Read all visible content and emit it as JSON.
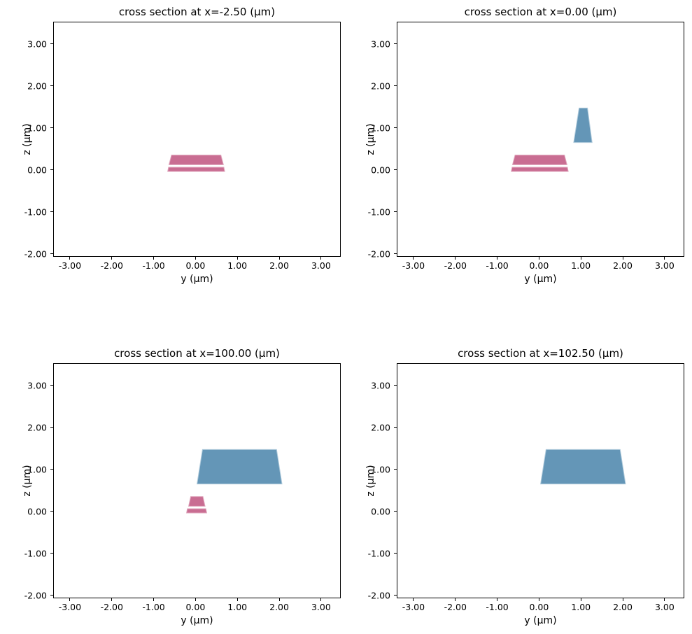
{
  "figure": {
    "background": "#ffffff",
    "text_color": "#000000",
    "layer_colors": {
      "lower_layer_fill": "#c96d92",
      "lower_layer_edge": "#dfa6bc",
      "upper_layer_fill": "#6496b7",
      "upper_layer_edge": "#b0cbdc"
    }
  },
  "chart_data": [
    {
      "type": "cross-section-polygons",
      "title": "cross section at x=-2.50 (μm)",
      "xlabel": "y (μm)",
      "ylabel": "z (μm)",
      "xlim": [
        -3.4,
        3.47
      ],
      "ylim": [
        -2.07,
        3.53
      ],
      "grid": false,
      "xticks": [
        -3,
        -2,
        -1,
        0,
        1,
        2,
        3
      ],
      "xtick_labels": [
        "-3.00",
        "-2.00",
        "-1.00",
        "0.00",
        "1.00",
        "2.00",
        "3.00"
      ],
      "yticks": [
        3,
        2,
        1,
        0,
        -1,
        -2
      ],
      "ytick_labels": [
        "3.00",
        "2.00",
        "1.00",
        "0.00",
        "-1.00",
        "-2.00"
      ],
      "shapes": [
        {
          "name": "slab-layer",
          "color": "#c96d92",
          "edge": "#dfa6bc",
          "points": [
            [
              -0.68,
              -0.02
            ],
            [
              0.68,
              -0.02
            ],
            [
              0.66,
              0.08
            ],
            [
              -0.66,
              0.08
            ]
          ]
        },
        {
          "name": "core-layer",
          "color": "#c96d92",
          "edge": "#dfa6bc",
          "points": [
            [
              -0.65,
              0.14
            ],
            [
              0.65,
              0.14
            ],
            [
              0.59,
              0.37
            ],
            [
              -0.59,
              0.37
            ]
          ]
        }
      ]
    },
    {
      "type": "cross-section-polygons",
      "title": "cross section at x=0.00 (μm)",
      "xlabel": "y (μm)",
      "ylabel": "z (μm)",
      "xlim": [
        -3.4,
        3.47
      ],
      "ylim": [
        -2.07,
        3.53
      ],
      "grid": false,
      "xticks": [
        -3,
        -2,
        -1,
        0,
        1,
        2,
        3
      ],
      "xtick_labels": [
        "-3.00",
        "-2.00",
        "-1.00",
        "0.00",
        "1.00",
        "2.00",
        "3.00"
      ],
      "yticks": [
        3,
        2,
        1,
        0,
        -1,
        -2
      ],
      "ytick_labels": [
        "3.00",
        "2.00",
        "1.00",
        "0.00",
        "-1.00",
        "-2.00"
      ],
      "shapes": [
        {
          "name": "slab-layer",
          "color": "#c96d92",
          "edge": "#dfa6bc",
          "points": [
            [
              -0.68,
              -0.02
            ],
            [
              0.68,
              -0.02
            ],
            [
              0.66,
              0.08
            ],
            [
              -0.66,
              0.08
            ]
          ]
        },
        {
          "name": "core-layer",
          "color": "#c96d92",
          "edge": "#dfa6bc",
          "points": [
            [
              -0.65,
              0.14
            ],
            [
              0.65,
              0.14
            ],
            [
              0.59,
              0.37
            ],
            [
              -0.59,
              0.37
            ]
          ]
        },
        {
          "name": "upper-waveguide",
          "color": "#6496b7",
          "edge": "#b0cbdc",
          "points": [
            [
              0.81,
              0.67
            ],
            [
              1.25,
              0.67
            ],
            [
              1.14,
              1.49
            ],
            [
              0.94,
              1.49
            ]
          ]
        }
      ]
    },
    {
      "type": "cross-section-polygons",
      "title": "cross section at x=100.00 (μm)",
      "xlabel": "y (μm)",
      "ylabel": "z (μm)",
      "xlim": [
        -3.4,
        3.47
      ],
      "ylim": [
        -2.07,
        3.53
      ],
      "grid": false,
      "xticks": [
        -3,
        -2,
        -1,
        0,
        1,
        2,
        3
      ],
      "xtick_labels": [
        "-3.00",
        "-2.00",
        "-1.00",
        "0.00",
        "1.00",
        "2.00",
        "3.00"
      ],
      "yticks": [
        3,
        2,
        1,
        0,
        -1,
        -2
      ],
      "ytick_labels": [
        "3.00",
        "2.00",
        "1.00",
        "0.00",
        "-1.00",
        "-2.00"
      ],
      "shapes": [
        {
          "name": "upper-waveguide",
          "color": "#6496b7",
          "edge": "#b0cbdc",
          "points": [
            [
              0.02,
              0.67
            ],
            [
              2.05,
              0.67
            ],
            [
              1.92,
              1.49
            ],
            [
              0.15,
              1.49
            ]
          ]
        },
        {
          "name": "slab-layer",
          "color": "#c96d92",
          "edge": "#dfa6bc",
          "points": [
            [
              -0.23,
              -0.02
            ],
            [
              0.25,
              -0.02
            ],
            [
              0.23,
              0.08
            ],
            [
              -0.21,
              0.08
            ]
          ]
        },
        {
          "name": "core-layer",
          "color": "#c96d92",
          "edge": "#dfa6bc",
          "points": [
            [
              -0.18,
              0.14
            ],
            [
              0.21,
              0.14
            ],
            [
              0.16,
              0.37
            ],
            [
              -0.13,
              0.37
            ]
          ]
        }
      ]
    },
    {
      "type": "cross-section-polygons",
      "title": "cross section at x=102.50 (μm)",
      "xlabel": "y (μm)",
      "ylabel": "z (μm)",
      "xlim": [
        -3.4,
        3.47
      ],
      "ylim": [
        -2.07,
        3.53
      ],
      "grid": false,
      "xticks": [
        -3,
        -2,
        -1,
        0,
        1,
        2,
        3
      ],
      "xtick_labels": [
        "-3.00",
        "-2.00",
        "-1.00",
        "0.00",
        "1.00",
        "2.00",
        "3.00"
      ],
      "yticks": [
        3,
        2,
        1,
        0,
        -1,
        -2
      ],
      "ytick_labels": [
        "3.00",
        "2.00",
        "1.00",
        "0.00",
        "-1.00",
        "-2.00"
      ],
      "shapes": [
        {
          "name": "upper-waveguide",
          "color": "#6496b7",
          "edge": "#b0cbdc",
          "points": [
            [
              0.02,
              0.67
            ],
            [
              2.05,
              0.67
            ],
            [
              1.92,
              1.49
            ],
            [
              0.15,
              1.49
            ]
          ]
        }
      ]
    }
  ]
}
